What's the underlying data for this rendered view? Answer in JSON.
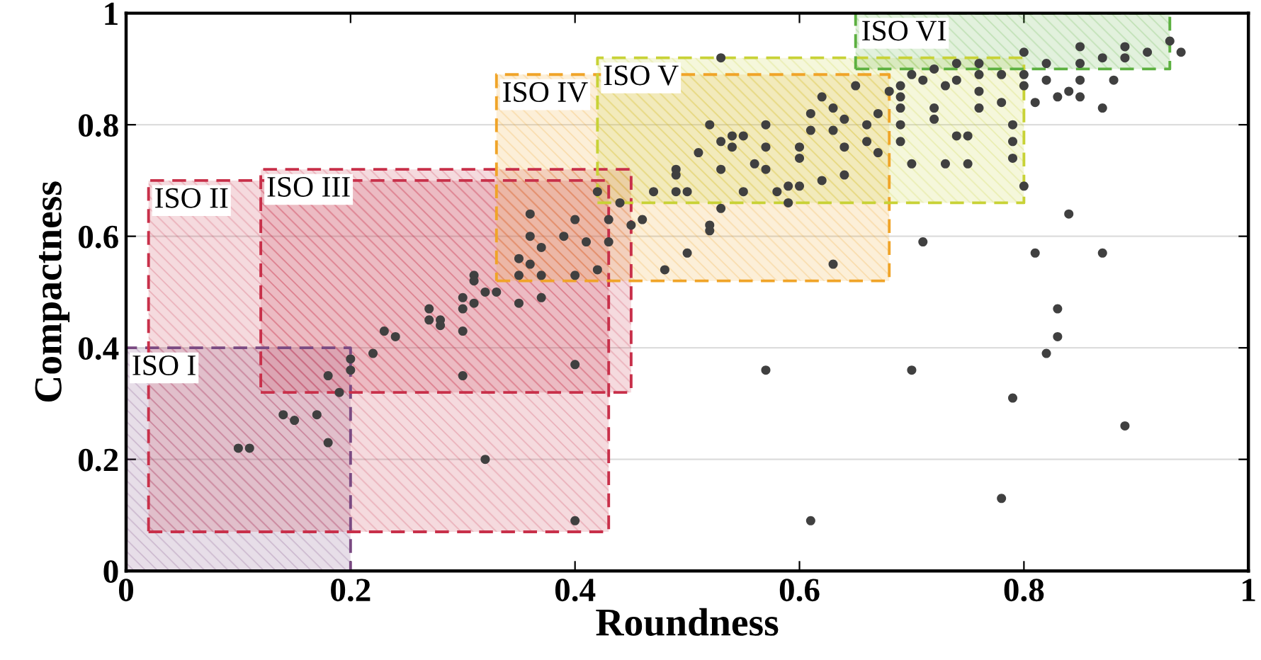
{
  "chart_data": {
    "type": "scatter",
    "xlabel": "Roundness",
    "ylabel": "Compactness",
    "xlim": [
      0,
      1
    ],
    "ylim": [
      0,
      1
    ],
    "xticks": [
      0,
      0.2,
      0.4,
      0.6,
      0.8,
      1
    ],
    "yticks": [
      0,
      0.2,
      0.4,
      0.6,
      0.8,
      1
    ],
    "grid": "y",
    "marker": "circle",
    "series": [
      {
        "name": "ISO I",
        "type": "area",
        "marker": "none",
        "line_style": "dashed",
        "color": "#7a4a82",
        "x": [
          0,
          0.2,
          0.2,
          0,
          0
        ],
        "values": [
          0,
          0,
          0.4,
          0.4,
          0
        ]
      },
      {
        "name": "ISO II",
        "type": "area",
        "marker": "none",
        "line_style": "dashed",
        "color": "#c8304a",
        "x": [
          0.02,
          0.43,
          0.43,
          0.02,
          0.02
        ],
        "values": [
          0.07,
          0.07,
          0.7,
          0.7,
          0.07
        ]
      },
      {
        "name": "ISO III",
        "type": "area",
        "marker": "none",
        "line_style": "dashed",
        "color": "#c8304a",
        "x": [
          0.12,
          0.45,
          0.45,
          0.12,
          0.12
        ],
        "values": [
          0.32,
          0.32,
          0.72,
          0.72,
          0.32
        ]
      },
      {
        "name": "ISO IV",
        "type": "area",
        "marker": "none",
        "line_style": "dashed",
        "color": "#f0a428",
        "x": [
          0.33,
          0.68,
          0.68,
          0.33,
          0.33
        ],
        "values": [
          0.52,
          0.52,
          0.89,
          0.89,
          0.52
        ]
      },
      {
        "name": "ISO V",
        "type": "area",
        "marker": "none",
        "line_style": "dashed",
        "color": "#c8d236",
        "x": [
          0.42,
          0.8,
          0.8,
          0.42,
          0.42
        ],
        "values": [
          0.66,
          0.66,
          0.92,
          0.92,
          0.66
        ]
      },
      {
        "name": "ISO VI",
        "type": "area",
        "marker": "none",
        "line_style": "dashed",
        "color": "#5cb040",
        "x": [
          0.65,
          0.93,
          0.93,
          0.65,
          0.65
        ],
        "values": [
          0.9,
          0.9,
          1.0,
          1.0,
          0.9
        ]
      },
      {
        "color": "#404040",
        "x": [
          0.1,
          0.11,
          0.14,
          0.15,
          0.17,
          0.18,
          0.18,
          0.19,
          0.2,
          0.2,
          0.22,
          0.23,
          0.24,
          0.27,
          0.27,
          0.28,
          0.28,
          0.3,
          0.3,
          0.3,
          0.31,
          0.3,
          0.31,
          0.31,
          0.32,
          0.32,
          0.33,
          0.35,
          0.35,
          0.36,
          0.35,
          0.36,
          0.36,
          0.37,
          0.37,
          0.37,
          0.39,
          0.4,
          0.4,
          0.4,
          0.41,
          0.4,
          0.42,
          0.42,
          0.43,
          0.43,
          0.44,
          0.45,
          0.46,
          0.53,
          0.47,
          0.48,
          0.49,
          0.49,
          0.49,
          0.5,
          0.5,
          0.51,
          0.52,
          0.52,
          0.52,
          0.53,
          0.53,
          0.53,
          0.54,
          0.54,
          0.55,
          0.55,
          0.56,
          0.57,
          0.57,
          0.57,
          0.58,
          0.57,
          0.59,
          0.59,
          0.6,
          0.6,
          0.6,
          0.61,
          0.61,
          0.61,
          0.62,
          0.62,
          0.63,
          0.63,
          0.63,
          0.64,
          0.64,
          0.64,
          0.65,
          0.66,
          0.66,
          0.67,
          0.67,
          0.68,
          0.69,
          0.69,
          0.69,
          0.7,
          0.7,
          0.71,
          0.71,
          0.72,
          0.72,
          0.73,
          0.74,
          0.74,
          0.75,
          0.75,
          0.76,
          0.76,
          0.78,
          0.78,
          0.79,
          0.79,
          0.79,
          0.79,
          0.8,
          0.81,
          0.81,
          0.82,
          0.83,
          0.83,
          0.84,
          0.83,
          0.85,
          0.87,
          0.87,
          0.89,
          0.76,
          0.8,
          0.85,
          0.89,
          0.93,
          0.94,
          0.7,
          0.72,
          0.74,
          0.78,
          0.8,
          0.82,
          0.85,
          0.87,
          0.89,
          0.91,
          0.69,
          0.73,
          0.76,
          0.8,
          0.82,
          0.85,
          0.88,
          0.69,
          0.84
        ],
        "values": [
          0.22,
          0.22,
          0.28,
          0.27,
          0.28,
          0.35,
          0.23,
          0.32,
          0.36,
          0.38,
          0.39,
          0.43,
          0.42,
          0.45,
          0.47,
          0.45,
          0.44,
          0.43,
          0.47,
          0.49,
          0.48,
          0.35,
          0.53,
          0.52,
          0.2,
          0.5,
          0.5,
          0.53,
          0.56,
          0.55,
          0.48,
          0.64,
          0.6,
          0.58,
          0.53,
          0.49,
          0.6,
          0.63,
          0.37,
          0.53,
          0.59,
          0.09,
          0.68,
          0.54,
          0.59,
          0.63,
          0.66,
          0.62,
          0.63,
          0.92,
          0.68,
          0.54,
          0.72,
          0.68,
          0.71,
          0.57,
          0.68,
          0.75,
          0.62,
          0.8,
          0.61,
          0.65,
          0.72,
          0.77,
          0.76,
          0.78,
          0.68,
          0.78,
          0.73,
          0.36,
          0.8,
          0.76,
          0.68,
          0.72,
          0.66,
          0.69,
          0.69,
          0.74,
          0.76,
          0.82,
          0.79,
          0.09,
          0.7,
          0.85,
          0.83,
          0.79,
          0.55,
          0.71,
          0.81,
          0.76,
          0.87,
          0.77,
          0.8,
          0.75,
          0.82,
          0.86,
          0.8,
          0.77,
          0.85,
          0.73,
          0.36,
          0.59,
          0.88,
          0.83,
          0.81,
          0.73,
          0.78,
          0.88,
          0.78,
          0.73,
          0.83,
          0.89,
          0.13,
          0.84,
          0.77,
          0.31,
          0.8,
          0.74,
          0.69,
          0.84,
          0.57,
          0.39,
          0.42,
          0.47,
          0.64,
          0.85,
          0.85,
          0.83,
          0.57,
          0.26,
          0.91,
          0.93,
          0.94,
          0.94,
          0.95,
          0.93,
          0.89,
          0.9,
          0.91,
          0.89,
          0.89,
          0.91,
          0.91,
          0.92,
          0.92,
          0.93,
          0.87,
          0.87,
          0.86,
          0.87,
          0.88,
          0.88,
          0.88,
          0.83,
          0.86
        ]
      }
    ]
  }
}
